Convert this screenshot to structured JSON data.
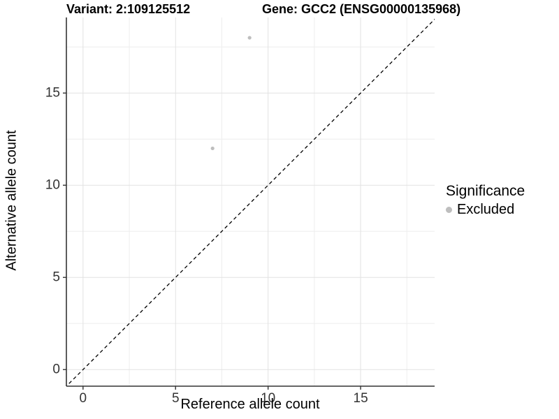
{
  "chart_data": {
    "type": "scatter",
    "title_left": "Variant: 2:109125512",
    "title_right": "Gene: GCC2 (ENSG00000135968)",
    "xlabel": "Reference allele count",
    "ylabel": "Alternative allele count",
    "xlim": [
      -0.9,
      19.0
    ],
    "ylim": [
      -0.9,
      19.1
    ],
    "x_ticks": [
      0,
      5,
      10,
      15
    ],
    "y_ticks": [
      0,
      5,
      10,
      15
    ],
    "x_minor_ticks": [
      2.5,
      7.5,
      12.5,
      17.5
    ],
    "y_minor_ticks": [
      2.5,
      7.5,
      12.5,
      17.5
    ],
    "grid": true,
    "identity_line": {
      "style": "dashed",
      "slope": 1,
      "intercept": 0
    },
    "series": [
      {
        "name": "Excluded",
        "color": "#bebebe",
        "points": [
          {
            "x": 9,
            "y": 18
          },
          {
            "x": 7,
            "y": 12
          }
        ]
      }
    ],
    "legend": {
      "title": "Significance",
      "position": "right",
      "items": [
        {
          "label": "Excluded",
          "color": "#bebebe"
        }
      ]
    },
    "colors": {
      "background": "#ffffff",
      "grid_major": "#e2e2e2",
      "grid_minor": "#eeeeee",
      "axis_line": "#333333",
      "tick_mark": "#333333",
      "tick_label": "#333333",
      "dashed_line": "#000000",
      "point": "#bebebe"
    }
  }
}
